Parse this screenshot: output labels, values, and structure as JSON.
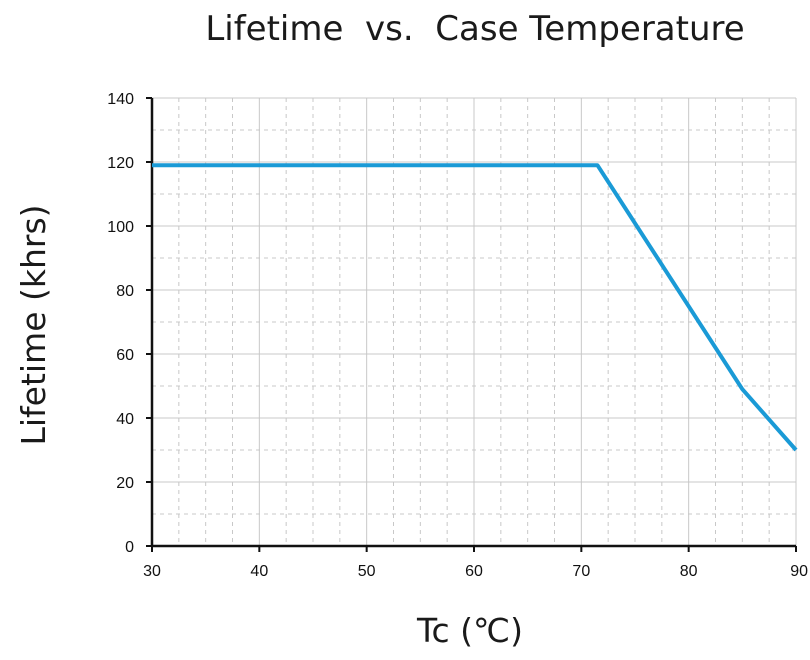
{
  "chart_data": {
    "type": "line",
    "title": "Lifetime  vs.  Case Temperature",
    "xlabel": "Tc (℃)",
    "ylabel": "Lifetime (khrs)",
    "xlim": [
      30,
      90
    ],
    "ylim": [
      0,
      140
    ],
    "x_ticks": [
      30,
      40,
      50,
      60,
      70,
      80,
      90
    ],
    "y_ticks": [
      0,
      20,
      40,
      60,
      80,
      100,
      120,
      140
    ],
    "x_minor_step": 2.5,
    "y_minor_step": 10,
    "grid": true,
    "line_color": "#1a9ad6",
    "grid_color": "#c8c8c8",
    "series": [
      {
        "x": [
          30,
          71.5,
          85,
          90
        ],
        "y": [
          119,
          119,
          49,
          30
        ]
      }
    ]
  }
}
